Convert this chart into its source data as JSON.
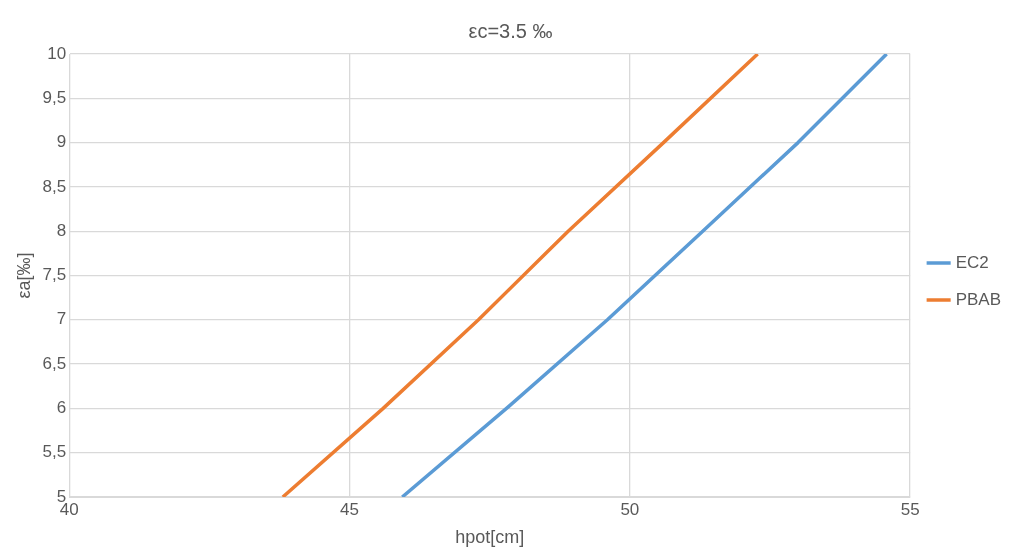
{
  "chart_data": {
    "type": "line",
    "title": "εc=3.5 ‰",
    "xlabel": "hpot[cm]",
    "ylabel": "εa[‰]",
    "series": [
      {
        "name": "EC2",
        "color": "#5b9bd5",
        "x": [
          45.94,
          47.8,
          49.6,
          51.3,
          53,
          54.58
        ],
        "values": [
          5,
          6,
          7,
          8,
          9,
          10
        ]
      },
      {
        "name": "PBAB",
        "color": "#ed7d31",
        "x": [
          43.81,
          45.6,
          47.3,
          48.9,
          50.6,
          52.28
        ],
        "values": [
          5,
          6,
          7,
          8,
          9,
          10
        ]
      }
    ],
    "xlim": [
      40,
      55
    ],
    "xticks": [
      40,
      45,
      50,
      55
    ],
    "ylim": [
      5,
      10
    ],
    "yticks": [
      5,
      {
        "value": 5.5,
        "label": "5,5"
      },
      6,
      {
        "value": 6.5,
        "label": "6,5"
      },
      7,
      {
        "value": 7.5,
        "label": "7,5"
      },
      8,
      {
        "value": 8.5,
        "label": "8,5"
      },
      9,
      {
        "value": 9.5,
        "label": "9,5"
      },
      10
    ],
    "grid": true,
    "legend": "right",
    "marker": "none",
    "line_style": "solid"
  }
}
